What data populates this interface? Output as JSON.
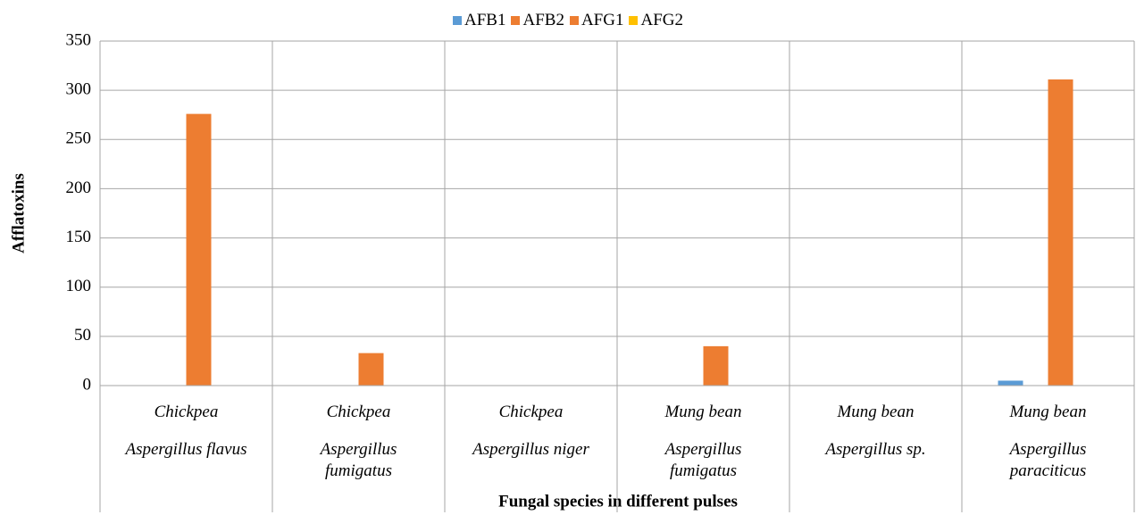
{
  "chart_data": {
    "type": "bar",
    "x_label": "Fungal species in different pulses",
    "y_label": "Afflatoxins",
    "categories": [
      [
        "Chickpea",
        "Aspergillus flavus"
      ],
      [
        "Chickpea",
        "Aspergillus fumigatus"
      ],
      [
        "Chickpea",
        "Aspergillus niger"
      ],
      [
        "Mung bean",
        "Aspergillus fumigatus"
      ],
      [
        "Mung bean",
        "Aspergillus sp."
      ],
      [
        "Mung bean",
        "Aspergillus paraciticus"
      ]
    ],
    "series": [
      {
        "name": "AFB1",
        "color": "#5b9bd5",
        "values": [
          0,
          0,
          0,
          0,
          0,
          5
        ]
      },
      {
        "name": "AFB2",
        "color": "#ed7d31",
        "values": [
          0,
          0,
          0,
          0,
          0,
          0
        ]
      },
      {
        "name": "AFG1",
        "color": "#ed7d31",
        "values": [
          276,
          33,
          0,
          40,
          0,
          311
        ]
      },
      {
        "name": "AFG2",
        "color": "#ffc000",
        "values": [
          0,
          0,
          0,
          0,
          0,
          0
        ]
      }
    ],
    "ylim": [
      0,
      350
    ],
    "yticks": [
      0,
      50,
      100,
      150,
      200,
      250,
      300,
      350
    ],
    "grid": true,
    "legend": "top"
  }
}
